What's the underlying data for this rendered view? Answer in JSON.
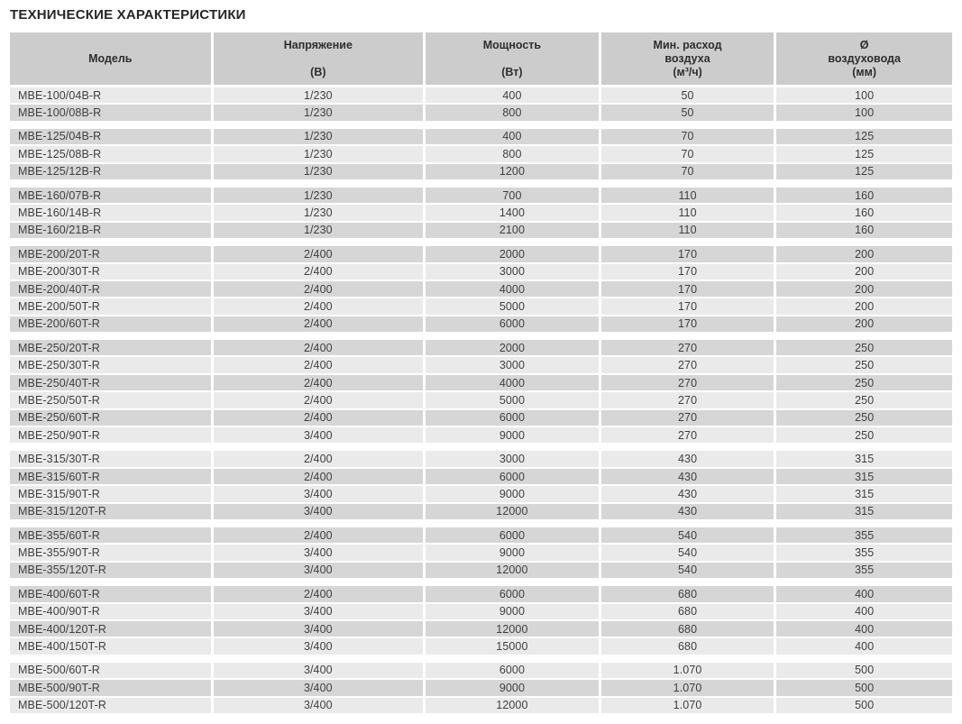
{
  "page_title": "ТЕХНИЧЕСКИЕ ХАРАКТЕРИСТИКИ",
  "colors": {
    "header_bg": "#cccccc",
    "row_light": "#eaeaea",
    "row_dark": "#d6d6d6",
    "text": "#3a3a3a"
  },
  "table": {
    "columns": [
      {
        "id": "model",
        "lines": [
          "Модель"
        ],
        "unit": ""
      },
      {
        "id": "voltage",
        "lines": [
          "Напряжение"
        ],
        "unit": "(В)"
      },
      {
        "id": "power",
        "lines": [
          "Мощность"
        ],
        "unit": "(Вт)"
      },
      {
        "id": "airflow",
        "lines": [
          "Мин. расход",
          "воздуха"
        ],
        "unit": "(м³/ч)"
      },
      {
        "id": "diameter",
        "lines": [
          "Ø",
          "воздуховода"
        ],
        "unit": "(мм)"
      }
    ],
    "groups": [
      {
        "rows": [
          [
            "MBE-100/04B-R",
            "1/230",
            "400",
            "50",
            "100"
          ],
          [
            "MBE-100/08B-R",
            "1/230",
            "800",
            "50",
            "100"
          ]
        ]
      },
      {
        "rows": [
          [
            "MBE-125/04B-R",
            "1/230",
            "400",
            "70",
            "125"
          ],
          [
            "MBE-125/08B-R",
            "1/230",
            "800",
            "70",
            "125"
          ],
          [
            "MBE-125/12B-R",
            "1/230",
            "1200",
            "70",
            "125"
          ]
        ]
      },
      {
        "rows": [
          [
            "MBE-160/07B-R",
            "1/230",
            "700",
            "110",
            "160"
          ],
          [
            "MBE-160/14B-R",
            "1/230",
            "1400",
            "110",
            "160"
          ],
          [
            "MBE-160/21B-R",
            "1/230",
            "2100",
            "110",
            "160"
          ]
        ]
      },
      {
        "rows": [
          [
            "MBE-200/20T-R",
            "2/400",
            "2000",
            "170",
            "200"
          ],
          [
            "MBE-200/30T-R",
            "2/400",
            "3000",
            "170",
            "200"
          ],
          [
            "MBE-200/40T-R",
            "2/400",
            "4000",
            "170",
            "200"
          ],
          [
            "MBE-200/50T-R",
            "2/400",
            "5000",
            "170",
            "200"
          ],
          [
            "MBE-200/60T-R",
            "2/400",
            "6000",
            "170",
            "200"
          ]
        ]
      },
      {
        "rows": [
          [
            "MBE-250/20T-R",
            "2/400",
            "2000",
            "270",
            "250"
          ],
          [
            "MBE-250/30T-R",
            "2/400",
            "3000",
            "270",
            "250"
          ],
          [
            "MBE-250/40T-R",
            "2/400",
            "4000",
            "270",
            "250"
          ],
          [
            "MBE-250/50T-R",
            "2/400",
            "5000",
            "270",
            "250"
          ],
          [
            "MBE-250/60T-R",
            "2/400",
            "6000",
            "270",
            "250"
          ],
          [
            "MBE-250/90T-R",
            "3/400",
            "9000",
            "270",
            "250"
          ]
        ]
      },
      {
        "rows": [
          [
            "MBE-315/30T-R",
            "2/400",
            "3000",
            "430",
            "315"
          ],
          [
            "MBE-315/60T-R",
            "2/400",
            "6000",
            "430",
            "315"
          ],
          [
            "MBE-315/90T-R",
            "3/400",
            "9000",
            "430",
            "315"
          ],
          [
            "MBE-315/120T-R",
            "3/400",
            "12000",
            "430",
            "315"
          ]
        ]
      },
      {
        "rows": [
          [
            "MBE-355/60T-R",
            "2/400",
            "6000",
            "540",
            "355"
          ],
          [
            "MBE-355/90T-R",
            "3/400",
            "9000",
            "540",
            "355"
          ],
          [
            "MBE-355/120T-R",
            "3/400",
            "12000",
            "540",
            "355"
          ]
        ]
      },
      {
        "rows": [
          [
            "MBE-400/60T-R",
            "2/400",
            "6000",
            "680",
            "400"
          ],
          [
            "MBE-400/90T-R",
            "3/400",
            "9000",
            "680",
            "400"
          ],
          [
            "MBE-400/120T-R",
            "3/400",
            "12000",
            "680",
            "400"
          ],
          [
            "MBE-400/150T-R",
            "3/400",
            "15000",
            "680",
            "400"
          ]
        ]
      },
      {
        "rows": [
          [
            "MBE-500/60T-R",
            "3/400",
            "6000",
            "1.070",
            "500"
          ],
          [
            "MBE-500/90T-R",
            "3/400",
            "9000",
            "1.070",
            "500"
          ],
          [
            "MBE-500/120T-R",
            "3/400",
            "12000",
            "1.070",
            "500"
          ]
        ]
      }
    ]
  }
}
